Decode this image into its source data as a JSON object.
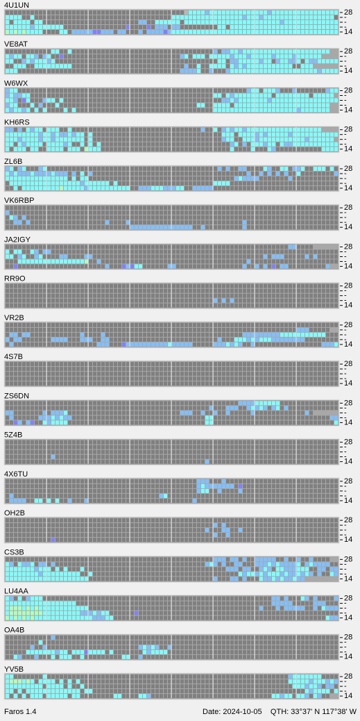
{
  "panels": [
    {
      "callsign": "4U1UN",
      "rows": [
        "...........................................wccccbccccccccccccccbccccccccccccccccc.",
        "cccc..c.................................cccccccccccccccccbcccbccccccccccccccccc.c",
        "c.cccc.cc.......................bb..cccccc.cccccccccccccccccccccccbccccccccccccc",
        "ccccccbccccccc...............p....p.bbb.bb.........cc.ccccccccccccccccccccccccccc",
        "gcgcgcccc....cc.bbbbbppbbb.bb...b.bbbbpbcccccccccccccccccccccccccccccccccccccccc"
      ]
    },
    {
      "callsign": "VE8AT",
      "rows": [
        "...........cc..c..................................b.bbccbccccccccccccccccccccc",
        "cbcc.ccb.bc..p............................bc.ccc.cccccbcccbcccccbccccbcccccc",
        "cc..bcbcccbc.......................................cc.bbcccccbcc.bccbbc.cbbccccc",
        "..ccc..ccccccccc...........................b..c..cccc.cbcbccccccccccc..ccc",
        "ccc.......................................bbbbc..b...bcccccccccccccccccccccbccccccc"
      ]
    },
    {
      "callsign": "W6WX",
      "rows": [
        "bcc.......................................................bcc.cccb...b.......bcc.bccccb",
        "bcbbcc............................................cc.cbccccccccc.cccccccc.ccccc",
        "ccb.pc...bcc.c......................................bbcbcccccccbcccccccccccccccccc",
        "bcc...c.b...c.................................cc..cccc.ccccccccccccccccccccccc",
        "cbccbc.c.c....c.c.................................ccccccccccccccccccccbccccccc"
      ]
    },
    {
      "callsign": "KH6RS",
      "rows": [
        "bb.b.cbcc.ccc..c...............................b..c.bcbccbcccccccccccccccccc",
        "ccccccccbccbcbbcbcc.c...............................ccc.ccccbcbcccccbccccccccccc",
        "cccbccccbccbccccccc.c...............................bcc..cccbcccccccccccbcccccc",
        "cc.cbcccc.ccccbc..c.c.c...............................bc.b.cccbcc.cbbccccccccccccc",
        "c.ccc.cc..cccc.ccc.gccc...............................c....c...cb...........cccccc"
      ]
    },
    {
      "callsign": "ZL6B",
      "rows": [
        "bc.bc...bc.........................................b.b..bb....cb..cc.bbc..ccc.c.",
        "cbcbbbcbbbbcbbb.b.c.b.....................................b..b.b.b.b..c........bb.........",
        "ccccccccccccccc.c.cc...................................bcbbbb.......b...................",
        ".cccccccccccccccccbcccccc.c.......................cccc................................",
        "..c.cccccccccgcccccbcccccccccc..bbbcccbbbcc..bbbbb..............................."
      ]
    },
    {
      "callsign": "VK6RBP",
      "rows": [
        "................................................................................",
        "b...............................................................................",
        ".cb.b...........................................................................",
        "..bb.b..................b....b...........................b......................",
        "..............................bbbbbbbbbbbbbbb..b.........b......................"
      ]
    },
    {
      "callsign": "JA2IGY",
      "rows": [
        "....................................................................bb....",
        "c.cc..cb.bb.....................................................................c..bbbbbbb",
        "cc.bc..bc....bb....bb.........................................b.bbb.....b.b.........b..bb",
        "...ccccccccccccccccg..b...................................b...........................pb.c.",
        "..p.....................b...pbpcc......bb................b..b.b.p.bb.........b"
      ]
    },
    {
      "callsign": "RR9O",
      "rows": [
        "................................................................................",
        "................................................................................",
        "................................................................................",
        "..................................................b.b.b.........................",
        "................................................................................"
      ]
    },
    {
      "callsign": "VR2B",
      "rows": [
        "................................................................................",
        "......................................................................bbb.....",
        ".bb.bb............b....b.................................bbbbbbbbbccccccccccc....c.bbb",
        "b.bb.......bbbb...bbb..bb..........................b...cccbcbcccbbbbbbbb...........c",
        ".b....................bbb...pbbbbbbbbbbcbbbbb.....bbbcbcb..b................bbbc"
      ]
    },
    {
      "callsign": "4S7B",
      "rows": [
        "................................................................................",
        "................................................................................",
        "................................................................................",
        "................................................................................",
        "................................................................................"
      ]
    },
    {
      "callsign": "ZS6DN",
      "rows": [
        "........................................................bbbbcccccc..............",
        ".................................................b...bbb..bcbcb.bc.b............",
        "bb.......b.bbbc...........................bbb..b..b..b.....b............b.",
        ".b......bbbcbcbb................................cc............................bb",
        "..pb.bp..cbcccc.................................cc.............................c"
      ]
    },
    {
      "callsign": "5Z4B",
      "rows": [
        "................................................................................",
        "................................................................................",
        "................................................................................",
        "...........b....................................................................",
        "................................................b..............................."
      ]
    },
    {
      "callsign": "4X6TU",
      "rows": [
        "..............................................bbb...b...........................",
        "..............................................bcbbbbbbb.p.......................",
        "..............................................bcc..b....b.......................",
        ".b...................................bc.........................................",
        ".bbbb..cc.c.c..b...b.........................b.................................."
      ]
    },
    {
      "callsign": "OH2B",
      "rows": [
        "................................................................................",
        "..................................................b.b...........................",
        "................................................b...bb..b.......................",
        "..................................................b..b..........................",
        "...........p...................................................................."
      ]
    },
    {
      "callsign": "CS3B",
      "rows": [
        "..................................................bbb.bb.b..bbbbb..b..b..b....",
        "cb.cbbc.bb.b....................................bcb.b..bb...bbbcbcbbbbc.bcbbbb..",
        "cccccccbccc.c.c...c..................................bbb.bb..bcb.ccbbbccc..bb.bbbb",
        "ccccccccbccccccccc..c...................................cbccbcbcccbcbbcbcb.b..cbbbb",
        "cccccccccccccccccccc..............................b...bb.b...cbbcbcbbcbb"
      ]
    },
    {
      "callsign": "LU4AA",
      "rows": [
        "cb.c.bccc.......................................................bb.b...cb.b....b.",
        "ccccccccccccccccc...............................................bbbbb.....bbb.....",
        "cgggcgcgcccccccccccc.........................................b...b.bbbbb..b.cbbb",
        "cggggggggcccccccccbbbcbcc......p....................................................bb.bcbbb",
        "gcgcgcgccccccccccccccbbbcc...................................................cbbbbbbbbb"
      ]
    },
    {
      "callsign": "OA4B",
      "rows": [
        "...........b....................................................................",
        "........c.......................................................................",
        "......b..b......................bcbcb..b........................................",
        ".....cccccccbcc.cccpcccc.c.......cbcccc.........................................",
        "..cb...b...c.ccc..c.........cc..b..............................................."
      ]
    },
    {
      "callsign": "YV5B",
      "rows": [
        "cc.......c..........................................................bccccccc......",
        "cgggcgc.cccc.c.c.c..................................................cccccbcccbcbb.",
        "ccccccccc.cccc.c..c..................................................cccbccb.bb.cc.",
        "cc.c.ccccccccccccc.cc...................................................cbcccc.ccccc.c",
        "c.c.c.ccc.ccccc.cc........cc....ccb.............................ccbcc.ccb.cb.."
      ]
    }
  ],
  "levels": {
    ".": "#808080",
    "c": "#80ffff",
    "b": "#80c0ff",
    "p": "#8080ff",
    "g": "#b0ffc0",
    "w": "#b8b8b8"
  },
  "band_marks": [
    "28",
    "-",
    "-",
    "-",
    "14"
  ],
  "status": {
    "app": "Faros 1.4",
    "date": "Date: 2024-10-05",
    "qth": "QTH: 33°37' N  117°38' W"
  }
}
